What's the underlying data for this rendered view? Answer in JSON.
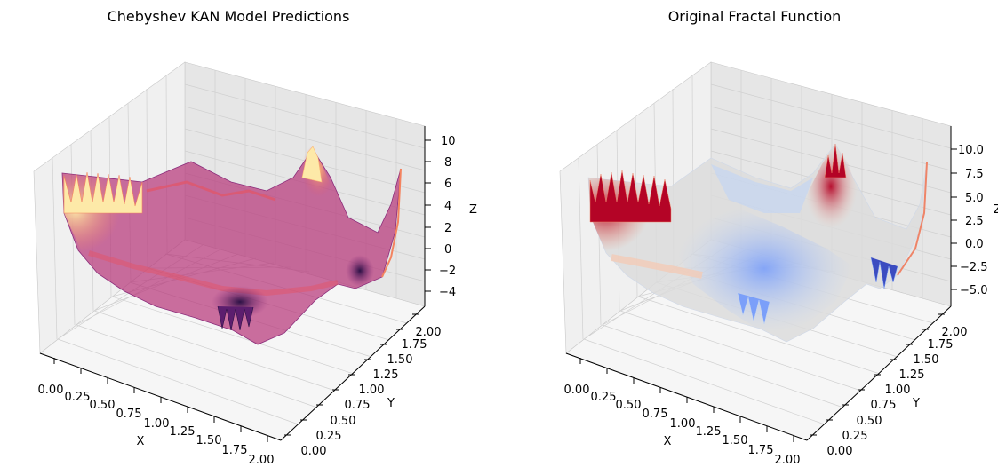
{
  "chart_data": [
    {
      "type": "surface3d",
      "title": "Chebyshev KAN Model Predictions",
      "xlabel": "X",
      "ylabel": "Y",
      "zlabel": "Z",
      "xlim": [
        0,
        2
      ],
      "ylim": [
        0,
        2
      ],
      "zlim": [
        -5,
        11
      ],
      "xticks": [
        "0.00",
        "0.25",
        "0.50",
        "0.75",
        "1.00",
        "1.25",
        "1.50",
        "1.75",
        "2.00"
      ],
      "yticks": [
        "0.00",
        "0.25",
        "0.50",
        "0.75",
        "1.00",
        "1.25",
        "1.50",
        "1.75",
        "2.00"
      ],
      "zticks": [
        "−4",
        "−2",
        "0",
        "2",
        "4",
        "6",
        "8",
        "10"
      ],
      "colormap": "magma",
      "colormap_colors": [
        "#2b1145",
        "#5c1e6e",
        "#8b2d7b",
        "#b7377a",
        "#e0566b",
        "#f4835f",
        "#fbb677",
        "#fde9a8"
      ],
      "surface_peaks": [
        {
          "x": 0.0,
          "y": 0.3,
          "z": 8.5
        },
        {
          "x": 1.8,
          "y": 1.7,
          "z": 10.2
        },
        {
          "x": 1.2,
          "y": 0.9,
          "z": -4.0
        },
        {
          "x": 2.0,
          "y": 0.6,
          "z": -4.5
        }
      ]
    },
    {
      "type": "surface3d",
      "title": "Original Fractal Function",
      "xlabel": "X",
      "ylabel": "Y",
      "zlabel": "Z",
      "xlim": [
        0,
        2
      ],
      "ylim": [
        0,
        2
      ],
      "zlim": [
        -6,
        12
      ],
      "xticks": [
        "0.00",
        "0.25",
        "0.50",
        "0.75",
        "1.00",
        "1.25",
        "1.50",
        "1.75",
        "2.00"
      ],
      "yticks": [
        "0.00",
        "0.25",
        "0.50",
        "0.75",
        "1.00",
        "1.25",
        "1.50",
        "1.75",
        "2.00"
      ],
      "zticks": [
        "−5.0",
        "−2.5",
        "0.0",
        "2.5",
        "5.0",
        "7.5",
        "10.0"
      ],
      "colormap": "coolwarm",
      "colormap_colors": [
        "#3b4cc0",
        "#7b9ff9",
        "#c0d4f5",
        "#dddddd",
        "#f2cbb7",
        "#ee8468",
        "#b40426"
      ],
      "surface_peaks": [
        {
          "x": 0.0,
          "y": 0.3,
          "z": 9.0
        },
        {
          "x": 1.8,
          "y": 1.7,
          "z": 11.5
        },
        {
          "x": 1.2,
          "y": 0.9,
          "z": -4.5
        },
        {
          "x": 2.0,
          "y": 0.6,
          "z": -5.5
        }
      ]
    }
  ]
}
